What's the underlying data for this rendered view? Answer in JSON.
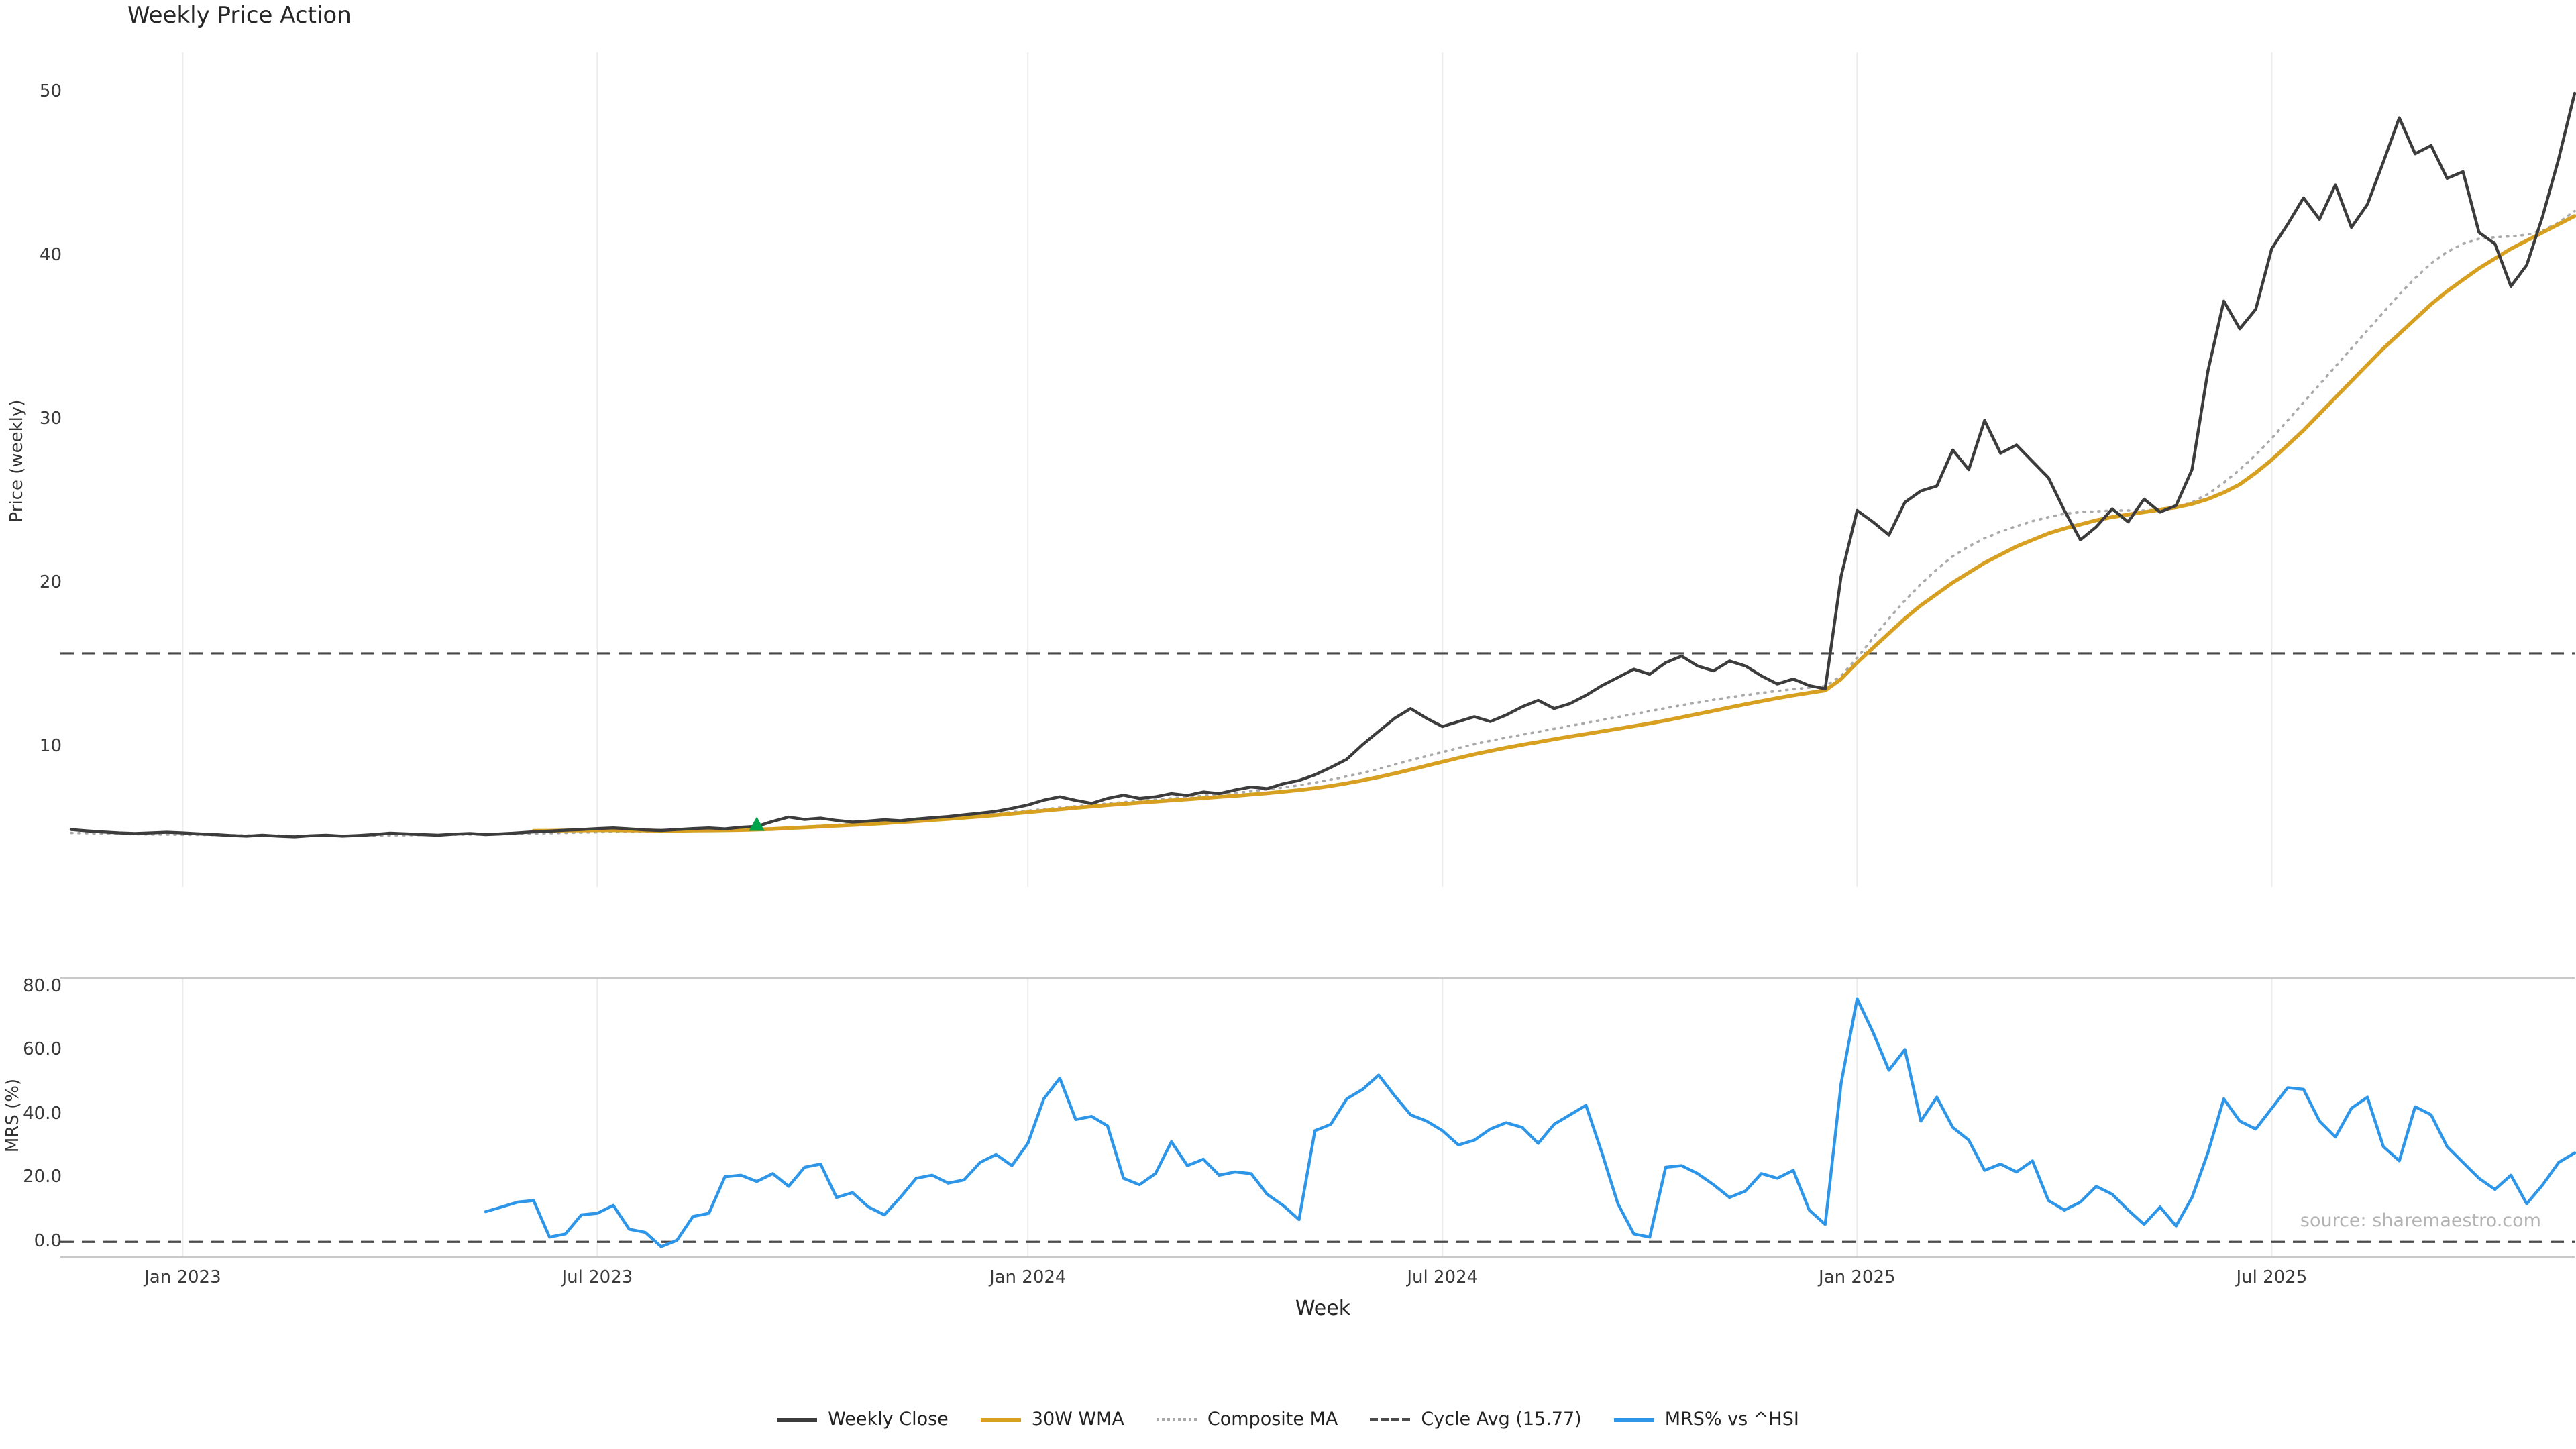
{
  "title": "Weekly Price Action",
  "source_note": "source: sharemaestro.com",
  "colors": {
    "grid": "#ebebeb",
    "spine": "#c9c9c9",
    "dashed": "#4a4a4a",
    "background": "#ffffff",
    "buy_marker": "#00a24a"
  },
  "legend": [
    {
      "label": "Weekly Close",
      "color": "#3c3c3c",
      "style": "solid"
    },
    {
      "label": "30W WMA",
      "color": "#d7a021",
      "style": "solid"
    },
    {
      "label": "Composite MA",
      "color": "#a9a9a9",
      "style": "dotted"
    },
    {
      "label": "Cycle Avg (15.77)",
      "color": "#4a4a4a",
      "style": "dashed"
    },
    {
      "label": "MRS% vs ^HSI",
      "color": "#2d96e8",
      "style": "solid"
    }
  ],
  "x_axis": {
    "label": "Week",
    "n_points": 158,
    "tick_indices": [
      7,
      33,
      60,
      86,
      112,
      138
    ],
    "tick_labels": [
      "Jan 2023",
      "Jul 2023",
      "Jan 2024",
      "Jul 2024",
      "Jan 2025",
      "Jul 2025"
    ]
  },
  "chart_data": [
    {
      "type": "line",
      "name": "price-panel",
      "title": "Weekly Price Action",
      "ylabel": "Price (weekly)",
      "ylim": [
        1.5,
        52.5
      ],
      "yticks": [
        10,
        20,
        30,
        40,
        50
      ],
      "ref_line": 15.77,
      "ref_line_label": "Cycle Avg (15.77)",
      "marker": {
        "index": 43,
        "value": 5.25,
        "color": "#00a24a",
        "shape": "triangle-up"
      },
      "series": [
        {
          "name": "Weekly Close",
          "color": "#3c3c3c",
          "style": "solid",
          "width": 2.2,
          "start_index": 0,
          "values": [
            5.0,
            4.92,
            4.85,
            4.8,
            4.76,
            4.8,
            4.84,
            4.8,
            4.74,
            4.7,
            4.64,
            4.6,
            4.66,
            4.6,
            4.56,
            4.62,
            4.66,
            4.6,
            4.64,
            4.7,
            4.78,
            4.74,
            4.7,
            4.66,
            4.72,
            4.76,
            4.7,
            4.74,
            4.8,
            4.86,
            4.9,
            4.96,
            5.0,
            5.06,
            5.1,
            5.04,
            4.98,
            4.94,
            5.0,
            5.06,
            5.1,
            5.04,
            5.14,
            5.2,
            5.5,
            5.76,
            5.62,
            5.7,
            5.56,
            5.46,
            5.52,
            5.6,
            5.54,
            5.64,
            5.72,
            5.8,
            5.9,
            6.0,
            6.12,
            6.3,
            6.5,
            6.8,
            7.0,
            6.78,
            6.6,
            6.9,
            7.1,
            6.9,
            7.0,
            7.2,
            7.08,
            7.3,
            7.2,
            7.42,
            7.6,
            7.5,
            7.8,
            8.0,
            8.35,
            8.8,
            9.3,
            10.2,
            11.0,
            11.8,
            12.4,
            11.8,
            11.3,
            11.6,
            11.9,
            11.6,
            12.0,
            12.5,
            12.9,
            12.4,
            12.7,
            13.2,
            13.8,
            14.3,
            14.8,
            14.5,
            15.2,
            15.6,
            15.0,
            14.7,
            15.3,
            15.0,
            14.4,
            13.9,
            14.2,
            13.8,
            13.6,
            20.5,
            24.5,
            23.8,
            23.0,
            25.0,
            25.7,
            26.0,
            28.2,
            27.0,
            30.0,
            28.0,
            28.5,
            27.5,
            26.5,
            24.5,
            22.7,
            23.5,
            24.6,
            23.8,
            25.2,
            24.4,
            24.8,
            27.0,
            33.0,
            37.3,
            35.6,
            36.8,
            40.5,
            42.0,
            43.6,
            42.3,
            44.4,
            41.8,
            43.2,
            45.8,
            48.5,
            46.3,
            46.8,
            44.8,
            45.2,
            41.5,
            40.8,
            38.2,
            39.5,
            42.5,
            46.0,
            50.0
          ]
        },
        {
          "name": "30W WMA",
          "color": "#d7a021",
          "style": "solid",
          "width": 2.8,
          "start_index": 29,
          "values": [
            4.92,
            4.93,
            4.94,
            4.95,
            4.96,
            4.96,
            4.95,
            4.94,
            4.93,
            4.93,
            4.94,
            4.95,
            4.96,
            4.98,
            5.0,
            5.03,
            5.08,
            5.13,
            5.18,
            5.23,
            5.28,
            5.33,
            5.39,
            5.45,
            5.51,
            5.58,
            5.65,
            5.72,
            5.8,
            5.88,
            5.97,
            6.06,
            6.15,
            6.24,
            6.33,
            6.41,
            6.49,
            6.57,
            6.64,
            6.71,
            6.78,
            6.85,
            6.92,
            6.99,
            7.06,
            7.14,
            7.22,
            7.31,
            7.41,
            7.53,
            7.67,
            7.83,
            8.01,
            8.21,
            8.43,
            8.66,
            8.9,
            9.14,
            9.38,
            9.6,
            9.81,
            10.0,
            10.18,
            10.35,
            10.52,
            10.68,
            10.84,
            11.0,
            11.16,
            11.32,
            11.49,
            11.67,
            11.86,
            12.06,
            12.26,
            12.46,
            12.66,
            12.85,
            13.03,
            13.2,
            13.36,
            13.5,
            14.2,
            15.2,
            16.1,
            17.0,
            17.9,
            18.7,
            19.4,
            20.1,
            20.7,
            21.3,
            21.8,
            22.3,
            22.7,
            23.1,
            23.4,
            23.65,
            23.9,
            24.1,
            24.25,
            24.4,
            24.55,
            24.7,
            24.9,
            25.2,
            25.6,
            26.1,
            26.8,
            27.6,
            28.5,
            29.4,
            30.4,
            31.4,
            32.4,
            33.4,
            34.4,
            35.3,
            36.2,
            37.1,
            37.9,
            38.6,
            39.3,
            39.9,
            40.5,
            41.0,
            41.5,
            42.0,
            42.5
          ]
        },
        {
          "name": "Composite MA",
          "color": "#a9a9a9",
          "style": "dotted",
          "width": 1.8,
          "start_index": 0,
          "values": [
            4.8,
            4.78,
            4.76,
            4.74,
            4.72,
            4.71,
            4.7,
            4.69,
            4.68,
            4.67,
            4.66,
            4.65,
            4.64,
            4.63,
            4.62,
            4.62,
            4.62,
            4.62,
            4.63,
            4.64,
            4.65,
            4.66,
            4.67,
            4.68,
            4.69,
            4.7,
            4.71,
            4.72,
            4.74,
            4.76,
            4.78,
            4.8,
            4.82,
            4.84,
            4.86,
            4.87,
            4.88,
            4.89,
            4.9,
            4.91,
            4.93,
            4.95,
            4.97,
            5.0,
            5.05,
            5.11,
            5.17,
            5.23,
            5.29,
            5.35,
            5.41,
            5.47,
            5.53,
            5.6,
            5.67,
            5.74,
            5.82,
            5.9,
            5.98,
            6.07,
            6.16,
            6.25,
            6.34,
            6.43,
            6.51,
            6.59,
            6.67,
            6.75,
            6.83,
            6.91,
            6.99,
            7.07,
            7.15,
            7.24,
            7.34,
            7.45,
            7.57,
            7.71,
            7.87,
            8.05,
            8.25,
            8.47,
            8.71,
            8.97,
            9.23,
            9.49,
            9.74,
            9.99,
            10.22,
            10.43,
            10.62,
            10.8,
            10.98,
            11.16,
            11.34,
            11.52,
            11.7,
            11.88,
            12.06,
            12.24,
            12.42,
            12.6,
            12.77,
            12.93,
            13.08,
            13.22,
            13.35,
            13.47,
            13.58,
            13.68,
            13.77,
            14.4,
            15.5,
            16.7,
            17.9,
            19.0,
            20.0,
            20.9,
            21.7,
            22.3,
            22.8,
            23.2,
            23.55,
            23.85,
            24.1,
            24.3,
            24.4,
            24.45,
            24.5,
            24.5,
            24.5,
            24.55,
            24.7,
            25.0,
            25.5,
            26.2,
            27.0,
            27.9,
            28.9,
            30.0,
            31.1,
            32.2,
            33.3,
            34.4,
            35.5,
            36.6,
            37.7,
            38.7,
            39.6,
            40.3,
            40.8,
            41.1,
            41.2,
            41.25,
            41.35,
            41.6,
            42.1,
            42.8
          ]
        }
      ]
    },
    {
      "type": "line",
      "name": "mrs-panel",
      "ylabel": "MRS (%)",
      "xlabel": "Week",
      "ylim": [
        -4.8,
        83
      ],
      "yticks": [
        0,
        20,
        40,
        60,
        80
      ],
      "ytick_labels": [
        "0.0",
        "20.0",
        "40.0",
        "60.0",
        "80.0"
      ],
      "ref_line": 0,
      "spines": true,
      "series": [
        {
          "name": "MRS% vs ^HSI",
          "color": "#2d96e8",
          "style": "solid",
          "width": 2.2,
          "start_index": 26,
          "values": [
            9.5,
            11.0,
            12.5,
            13.0,
            1.5,
            2.5,
            8.5,
            9.0,
            11.5,
            4.0,
            3.0,
            -1.5,
            0.5,
            8.0,
            9.0,
            20.5,
            21.0,
            19.0,
            21.5,
            17.5,
            23.5,
            24.5,
            14.0,
            15.5,
            11.0,
            8.5,
            14.0,
            20.0,
            21.0,
            18.5,
            19.5,
            25.0,
            27.5,
            24.0,
            31.0,
            45.0,
            51.5,
            38.5,
            39.5,
            36.5,
            20.0,
            18.0,
            21.5,
            31.5,
            24.0,
            26.0,
            21.0,
            22.0,
            21.5,
            15.0,
            11.5,
            7.0,
            35.0,
            37.0,
            45.0,
            48.0,
            52.5,
            46.0,
            40.0,
            38.0,
            35.0,
            30.5,
            32.0,
            35.5,
            37.5,
            36.0,
            31.0,
            37.0,
            40.0,
            43.0,
            28.0,
            12.0,
            2.5,
            1.5,
            23.5,
            24.0,
            21.5,
            18.0,
            14.0,
            16.0,
            21.5,
            20.0,
            22.5,
            10.0,
            5.5,
            50.0,
            76.5,
            66.0,
            54.0,
            60.5,
            38.0,
            45.5,
            36.0,
            32.0,
            22.5,
            24.5,
            22.0,
            25.5,
            13.0,
            10.0,
            12.5,
            17.5,
            15.0,
            10.0,
            5.5,
            11.0,
            5.0,
            14.0,
            28.0,
            45.0,
            38.0,
            35.5,
            42.0,
            48.5,
            48.0,
            38.0,
            33.0,
            42.0,
            45.5,
            30.0,
            25.5,
            42.5,
            40.0,
            30.0,
            25.0,
            20.0,
            16.5,
            21.0,
            12.0,
            18.0,
            25.0,
            28.0
          ]
        }
      ]
    }
  ]
}
